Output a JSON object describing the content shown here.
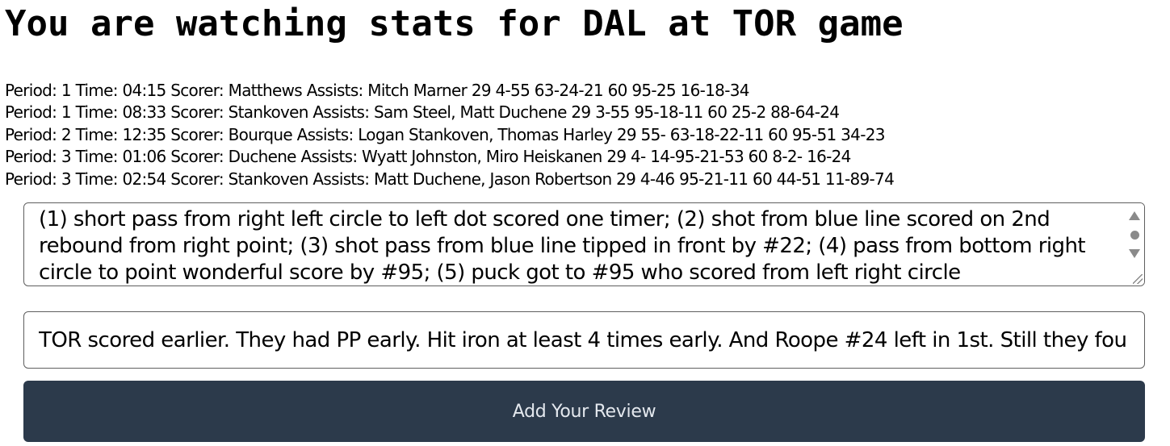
{
  "header": {
    "title": "You are watching stats for DAL at TOR game"
  },
  "goals": [
    {
      "period_label": "Period:",
      "period": "1",
      "time_label": "Time:",
      "time": "04:15",
      "scorer_label": "Scorer:",
      "scorer": "Matthews",
      "assists_label": "Assists:",
      "assists": "Mitch Marner",
      "stats": "29 4-55 63-24-21 60 95-25 16-18-34"
    },
    {
      "period_label": "Period:",
      "period": "1",
      "time_label": "Time:",
      "time": "08:33",
      "scorer_label": "Scorer:",
      "scorer": "Stankoven",
      "assists_label": "Assists:",
      "assists": "Sam Steel, Matt Duchene",
      "stats": "29 3-55 95-18-11 60 25-2 88-64-24"
    },
    {
      "period_label": "Period:",
      "period": "2",
      "time_label": "Time:",
      "time": "12:35",
      "scorer_label": "Scorer:",
      "scorer": "Bourque",
      "assists_label": "Assists:",
      "assists": "Logan Stankoven, Thomas Harley",
      "stats": "29 55- 63-18-22-11 60 95-51 34-23"
    },
    {
      "period_label": "Period:",
      "period": "3",
      "time_label": "Time:",
      "time": "01:06",
      "scorer_label": "Scorer:",
      "scorer": "Duchene",
      "assists_label": "Assists:",
      "assists": "Wyatt Johnston, Miro Heiskanen",
      "stats": "29 4- 14-95-21-53 60 8-2- 16-24"
    },
    {
      "period_label": "Period:",
      "period": "3",
      "time_label": "Time:",
      "time": "02:54",
      "scorer_label": "Scorer:",
      "scorer": "Stankoven",
      "assists_label": "Assists:",
      "assists": "Matt Duchene, Jason Robertson",
      "stats": "29 4-46 95-21-11 60 44-51 11-89-74"
    }
  ],
  "review_form": {
    "goals_description": "(1) short pass from right left circle to left dot scored one timer; (2) shot from blue line scored on 2nd rebound from right point; (3) shot pass from blue line tipped in front by #22; (4) pass from bottom right circle to point wonderful score by #95; (5) puck got to #95 who scored from left right circle",
    "review_text": "TOR scored earlier. They had PP early. Hit iron at least 4 times early. And Roope #24 left in 1st. Still they fou",
    "submit_label": "Add Your Review"
  },
  "icons": {
    "scroll_up": "scroll-up-arrow-icon",
    "scroll_down": "scroll-down-arrow-icon",
    "resize": "resize-grip-icon"
  },
  "colors": {
    "button_bg": "#2c3a4b",
    "button_text": "#e4e8ee",
    "border": "#5f5f5f"
  }
}
